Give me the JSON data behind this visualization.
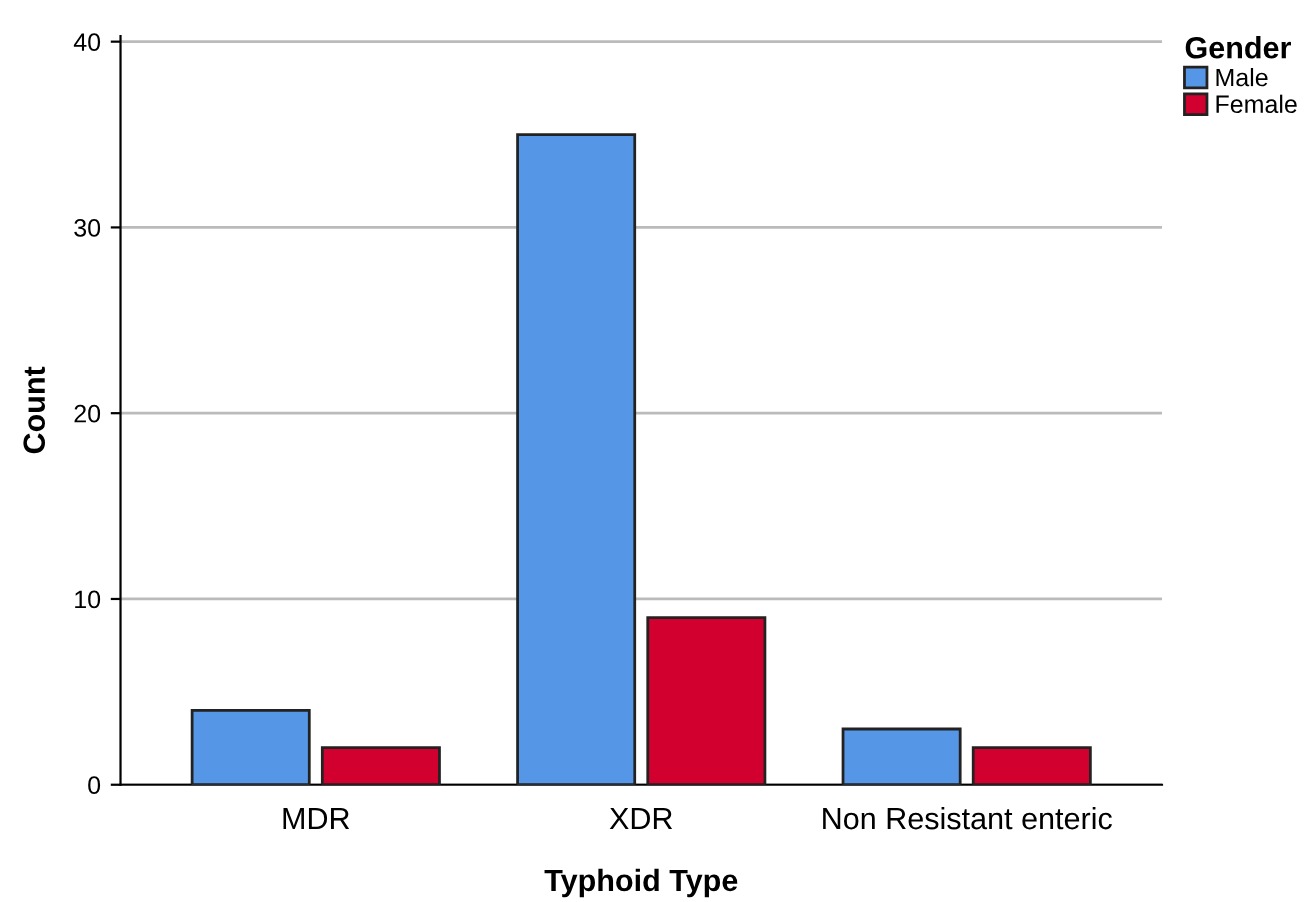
{
  "chart_data": {
    "type": "bar",
    "xlabel": "Typhoid Type",
    "ylabel": "Count",
    "legend_title": "Gender",
    "categories": [
      "MDR",
      "XDR",
      "Non Resistant enteric"
    ],
    "series": [
      {
        "name": "Male",
        "color": "#5596e6",
        "values": [
          4,
          35,
          3
        ]
      },
      {
        "name": "Female",
        "color": "#d1002f",
        "values": [
          2,
          9,
          2
        ]
      }
    ],
    "ylim": [
      0,
      40.3
    ],
    "yticks": [
      0,
      10,
      20,
      30,
      40
    ],
    "grid": "y",
    "legend": "top right"
  }
}
